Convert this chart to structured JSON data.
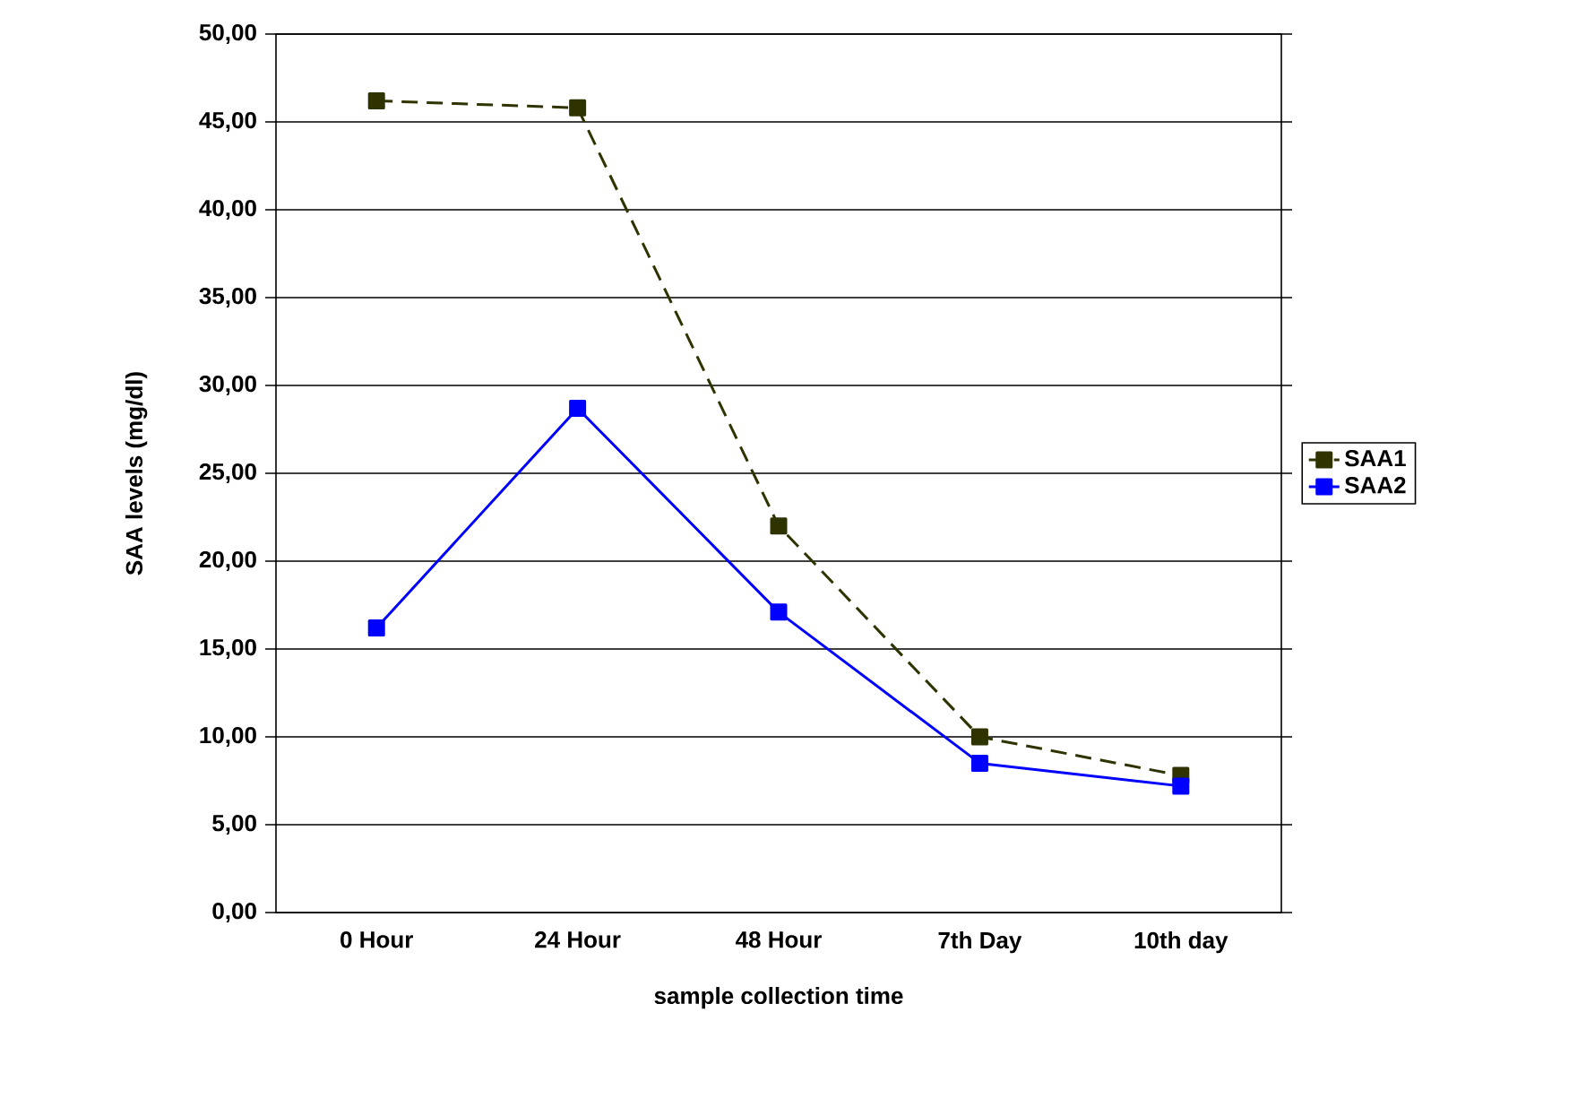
{
  "chart_data": {
    "type": "line",
    "xlabel": "sample collection time",
    "ylabel": "SAA levels (mg/dl)",
    "categories": [
      "0 Hour",
      "24 Hour",
      "48 Hour",
      "7th Day",
      "10th day"
    ],
    "series": [
      {
        "name": "SAA1",
        "color": "#2f3300",
        "line_style": "dashed",
        "values": [
          46.2,
          45.8,
          22.0,
          10.0,
          7.8
        ]
      },
      {
        "name": "SAA2",
        "color": "#0000ff",
        "line_style": "solid",
        "values": [
          16.2,
          28.7,
          17.1,
          8.5,
          7.2
        ]
      }
    ],
    "ylim": [
      0,
      50
    ],
    "yticks": [
      {
        "value": 0,
        "label": "0,00"
      },
      {
        "value": 5,
        "label": "5,00"
      },
      {
        "value": 10,
        "label": "10,00"
      },
      {
        "value": 15,
        "label": "15,00"
      },
      {
        "value": 20,
        "label": "20,00"
      },
      {
        "value": 25,
        "label": "25,00"
      },
      {
        "value": 30,
        "label": "30,00"
      },
      {
        "value": 35,
        "label": "35,00"
      },
      {
        "value": 40,
        "label": "40,00"
      },
      {
        "value": 45,
        "label": "45,00"
      },
      {
        "value": 50,
        "label": "50,00"
      }
    ],
    "grid": "y",
    "legend": "right",
    "marker": "square"
  }
}
